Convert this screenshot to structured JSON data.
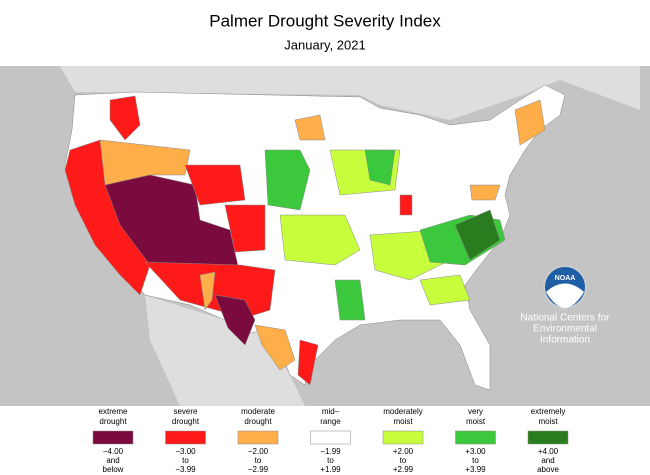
{
  "title": "Palmer Drought Severity Index",
  "subtitle": "January, 2021",
  "logo": "NOAA",
  "organization": [
    "National Centers for",
    "Environmental",
    "Information"
  ],
  "legend": [
    {
      "label": [
        "extreme",
        "drought"
      ],
      "range": [
        "−4.00",
        "and",
        "below"
      ],
      "color": "#7b0a3e"
    },
    {
      "label": [
        "severe",
        "drought"
      ],
      "range": [
        "−3.00",
        "to",
        "−3.99"
      ],
      "color": "#ff1a1a"
    },
    {
      "label": [
        "moderate",
        "drought"
      ],
      "range": [
        "−2.00",
        "to",
        "−2.99"
      ],
      "color": "#ffae4a"
    },
    {
      "label": [
        "mid–",
        "range"
      ],
      "range": [
        "−1.99",
        "to",
        "+1.99"
      ],
      "color": "#ffffff"
    },
    {
      "label": [
        "moderately",
        "moist"
      ],
      "range": [
        "+2.00",
        "to",
        "+2.99"
      ],
      "color": "#c8ff3c"
    },
    {
      "label": [
        "very",
        "moist"
      ],
      "range": [
        "+3.00",
        "to",
        "+3.99"
      ],
      "color": "#3cc83c"
    },
    {
      "label": [
        "extremely",
        "moist"
      ],
      "range": [
        "+4.00",
        "and",
        "above"
      ],
      "color": "#2a7d1e"
    }
  ]
}
